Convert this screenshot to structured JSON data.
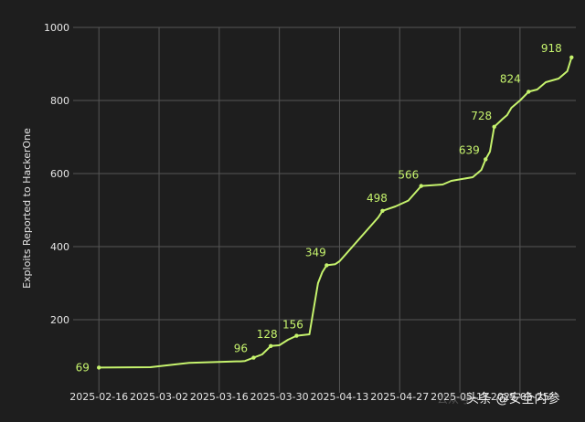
{
  "chart_data": {
    "type": "line",
    "ylabel": "Exploits Reported to HackerOne",
    "xlabel": "",
    "ylim": [
      0,
      1000
    ],
    "y_ticks": [
      200,
      400,
      600,
      800,
      1000
    ],
    "x_ticks": [
      "2025-02-16",
      "2025-03-02",
      "2025-03-16",
      "2025-03-30",
      "2025-04-13",
      "2025-04-27",
      "2025-05-11",
      "2025-05-25"
    ],
    "grid": true,
    "line_color": "#c6f36d",
    "text_color": "#e6e6e6",
    "grid_color": "#555555",
    "series": [
      {
        "points": [
          [
            "2025-02-16",
            69
          ],
          [
            "2025-02-28",
            70
          ],
          [
            "2025-03-09",
            82
          ],
          [
            "2025-03-20",
            86
          ],
          [
            "2025-03-21",
            86
          ],
          [
            "2025-03-22",
            87
          ],
          [
            "2025-03-24",
            96
          ],
          [
            "2025-03-26",
            105
          ],
          [
            "2025-03-28",
            128
          ],
          [
            "2025-03-30",
            130
          ],
          [
            "2025-04-01",
            145
          ],
          [
            "2025-04-03",
            156
          ],
          [
            "2025-04-06",
            160
          ],
          [
            "2025-04-08",
            300
          ],
          [
            "2025-04-09",
            330
          ],
          [
            "2025-04-10",
            349
          ],
          [
            "2025-04-12",
            352
          ],
          [
            "2025-04-13",
            360
          ],
          [
            "2025-04-16",
            400
          ],
          [
            "2025-04-19",
            440
          ],
          [
            "2025-04-22",
            480
          ],
          [
            "2025-04-23",
            498
          ],
          [
            "2025-04-26",
            510
          ],
          [
            "2025-04-29",
            526
          ],
          [
            "2025-05-02",
            566
          ],
          [
            "2025-05-07",
            570
          ],
          [
            "2025-05-09",
            580
          ],
          [
            "2025-05-14",
            590
          ],
          [
            "2025-05-16",
            610
          ],
          [
            "2025-05-17",
            639
          ],
          [
            "2025-05-18",
            660
          ],
          [
            "2025-05-19",
            728
          ],
          [
            "2025-05-21",
            750
          ],
          [
            "2025-05-22",
            760
          ],
          [
            "2025-05-23",
            780
          ],
          [
            "2025-05-25",
            800
          ],
          [
            "2025-05-27",
            824
          ],
          [
            "2025-05-29",
            830
          ],
          [
            "2025-05-31",
            850
          ],
          [
            "2025-06-03",
            860
          ],
          [
            "2025-06-05",
            880
          ],
          [
            "2025-06-06",
            918
          ]
        ]
      }
    ],
    "data_labels": [
      {
        "date": "2025-02-16",
        "value": 69,
        "text": "69"
      },
      {
        "date": "2025-03-24",
        "value": 96,
        "text": "96"
      },
      {
        "date": "2025-03-28",
        "value": 128,
        "text": "128"
      },
      {
        "date": "2025-04-03",
        "value": 156,
        "text": "156"
      },
      {
        "date": "2025-04-10",
        "value": 349,
        "text": "349"
      },
      {
        "date": "2025-04-23",
        "value": 498,
        "text": "498"
      },
      {
        "date": "2025-05-02",
        "value": 566,
        "text": "566"
      },
      {
        "date": "2025-05-17",
        "value": 639,
        "text": "639"
      },
      {
        "date": "2025-05-19",
        "value": 728,
        "text": "728"
      },
      {
        "date": "2025-05-27",
        "value": 824,
        "text": "824"
      },
      {
        "date": "2025-06-06",
        "value": 918,
        "text": "918"
      }
    ]
  },
  "watermark": {
    "faint_text": "公众号",
    "source_label": "头条 @安全内参"
  }
}
